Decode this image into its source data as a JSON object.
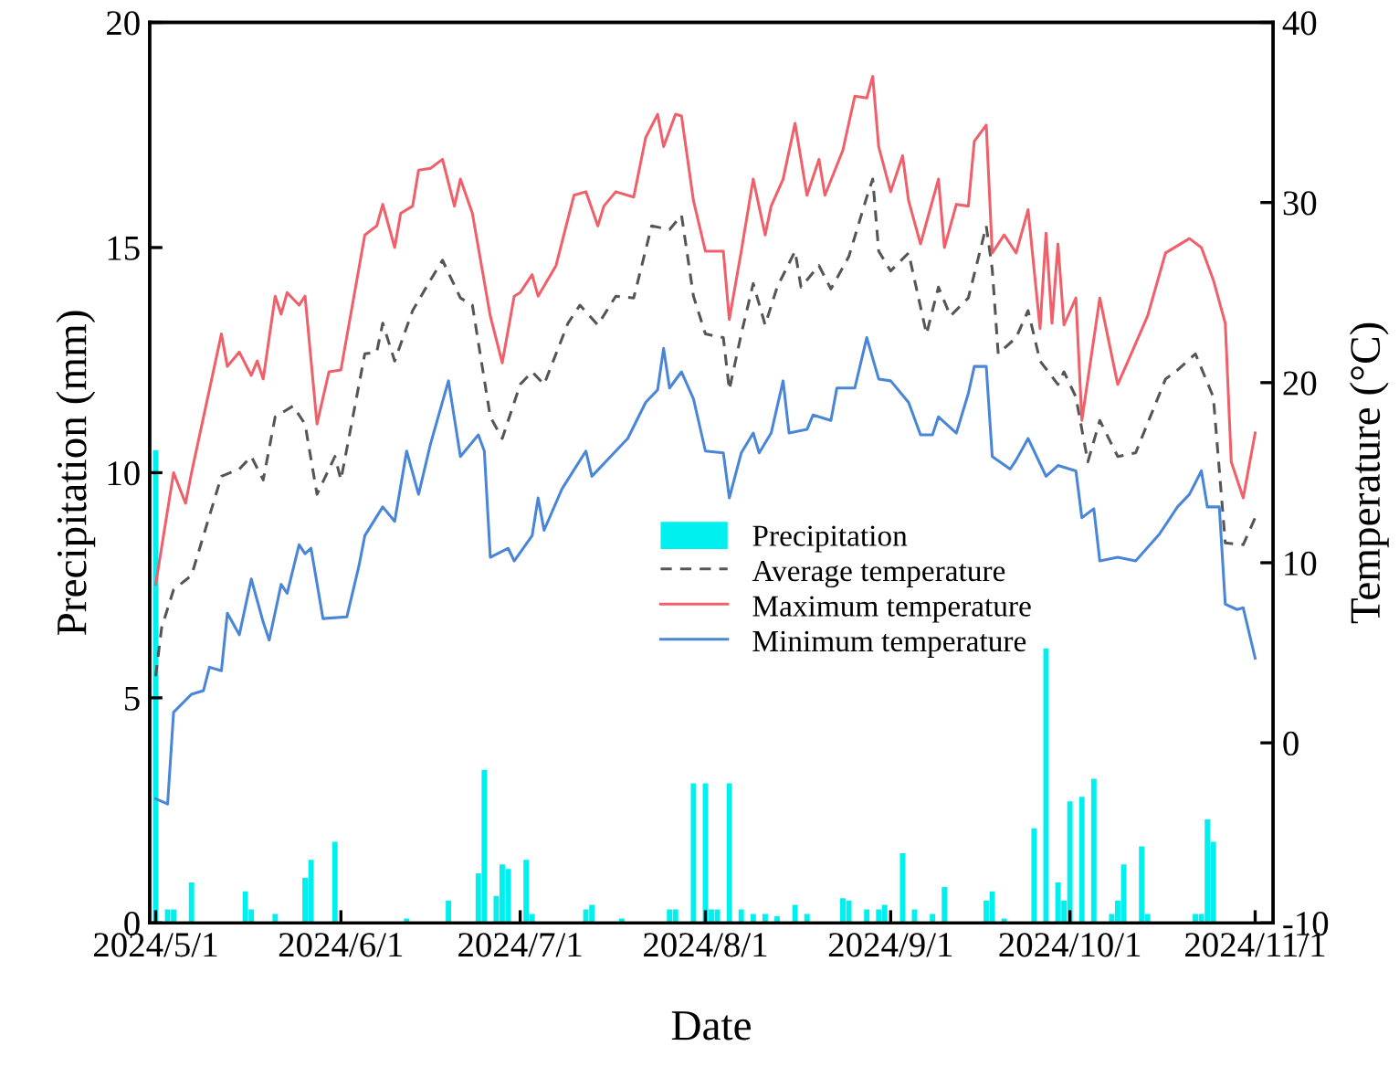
{
  "chart_data": {
    "type": "line",
    "xlabel": "Date",
    "ylabel": "Precipitation (mm)",
    "y2label": "Temperature (°C)",
    "xlim": [
      "2024-04-30",
      "2024-11-04"
    ],
    "xticks": [
      {
        "value": "2024-05-01",
        "label": "2024/5/1"
      },
      {
        "value": "2024-06-01",
        "label": "2024/6/1"
      },
      {
        "value": "2024-07-01",
        "label": "2024/7/1"
      },
      {
        "value": "2024-08-01",
        "label": "2024/8/1"
      },
      {
        "value": "2024-09-01",
        "label": "2024/9/1"
      },
      {
        "value": "2024-10-01",
        "label": "2024/10/1"
      },
      {
        "value": "2024-11-01",
        "label": "2024/11/1"
      }
    ],
    "ylim": [
      0,
      20
    ],
    "yticks": [
      0,
      5,
      10,
      15,
      20
    ],
    "y2lim": [
      -10,
      40
    ],
    "y2ticks": [
      -10,
      0,
      10,
      20,
      30,
      40
    ],
    "grid": false,
    "legend": "center",
    "marker": "none",
    "series": [
      {
        "name": "Precipitation",
        "type": "bar",
        "color": "#00f0f0",
        "x": [
          "2024-05-01",
          "2024-05-03",
          "2024-05-04",
          "2024-05-07",
          "2024-05-16",
          "2024-05-17",
          "2024-05-21",
          "2024-05-26",
          "2024-05-27",
          "2024-05-31",
          "2024-06-12",
          "2024-06-19",
          "2024-06-24",
          "2024-06-25",
          "2024-06-27",
          "2024-06-28",
          "2024-06-29",
          "2024-07-02",
          "2024-07-03",
          "2024-07-12",
          "2024-07-13",
          "2024-07-18",
          "2024-07-26",
          "2024-07-27",
          "2024-07-30",
          "2024-08-01",
          "2024-08-02",
          "2024-08-03",
          "2024-08-05",
          "2024-08-07",
          "2024-08-09",
          "2024-08-11",
          "2024-08-13",
          "2024-08-16",
          "2024-08-18",
          "2024-08-24",
          "2024-08-25",
          "2024-08-28",
          "2024-08-30",
          "2024-08-31",
          "2024-09-03",
          "2024-09-05",
          "2024-09-08",
          "2024-09-10",
          "2024-09-17",
          "2024-09-18",
          "2024-09-20",
          "2024-09-25",
          "2024-09-27",
          "2024-09-29",
          "2024-09-30",
          "2024-10-01",
          "2024-10-03",
          "2024-10-05",
          "2024-10-08",
          "2024-10-09",
          "2024-10-10",
          "2024-10-13",
          "2024-10-14",
          "2024-10-22",
          "2024-10-23",
          "2024-10-24",
          "2024-10-25"
        ],
        "values": [
          10.5,
          0.3,
          0.3,
          0.9,
          0.7,
          0.3,
          0.2,
          1.0,
          1.4,
          1.8,
          0.1,
          0.5,
          1.1,
          3.4,
          0.6,
          1.3,
          1.2,
          1.4,
          0.2,
          0.3,
          0.4,
          0.1,
          0.3,
          0.3,
          3.1,
          3.1,
          0.3,
          0.3,
          3.1,
          0.3,
          0.2,
          0.2,
          0.15,
          0.4,
          0.2,
          0.55,
          0.5,
          0.3,
          0.3,
          0.4,
          1.55,
          0.3,
          0.2,
          0.8,
          0.5,
          0.7,
          0.1,
          2.1,
          6.1,
          0.9,
          0.5,
          2.7,
          2.8,
          3.2,
          0.2,
          0.5,
          1.3,
          1.7,
          0.2,
          0.2,
          0.2,
          2.3,
          1.8
        ]
      },
      {
        "name": "Average temperature",
        "axis": "y2",
        "color": "#555555",
        "line_style": "dashed",
        "x": [
          "2024-05-01",
          "2024-05-02",
          "2024-05-04",
          "2024-05-07",
          "2024-05-12",
          "2024-05-15",
          "2024-05-17",
          "2024-05-19",
          "2024-05-21",
          "2024-05-24",
          "2024-05-26",
          "2024-05-28",
          "2024-05-31",
          "2024-06-01",
          "2024-06-05",
          "2024-06-07",
          "2024-06-08",
          "2024-06-10",
          "2024-06-13",
          "2024-06-16",
          "2024-06-18",
          "2024-06-21",
          "2024-06-23",
          "2024-06-26",
          "2024-06-28",
          "2024-07-01",
          "2024-07-03",
          "2024-07-05",
          "2024-07-09",
          "2024-07-11",
          "2024-07-14",
          "2024-07-17",
          "2024-07-20",
          "2024-07-23",
          "2024-07-26",
          "2024-07-28",
          "2024-07-30",
          "2024-08-01",
          "2024-08-04",
          "2024-08-05",
          "2024-08-07",
          "2024-08-09",
          "2024-08-11",
          "2024-08-13",
          "2024-08-16",
          "2024-08-17",
          "2024-08-20",
          "2024-08-22",
          "2024-08-25",
          "2024-08-28",
          "2024-08-29",
          "2024-08-30",
          "2024-09-01",
          "2024-09-04",
          "2024-09-07",
          "2024-09-09",
          "2024-09-11",
          "2024-09-14",
          "2024-09-17",
          "2024-09-18",
          "2024-09-19",
          "2024-09-22",
          "2024-09-24",
          "2024-09-26",
          "2024-09-29",
          "2024-09-30",
          "2024-10-02",
          "2024-10-04",
          "2024-10-06",
          "2024-10-09",
          "2024-10-12",
          "2024-10-17",
          "2024-10-19",
          "2024-10-22",
          "2024-10-25",
          "2024-10-27",
          "2024-10-30",
          "2024-11-01"
        ],
        "values": [
          3.7,
          6.4,
          8.5,
          9.3,
          14.8,
          15.2,
          15.9,
          14.6,
          18.1,
          18.7,
          17.7,
          13.8,
          15.9,
          14.6,
          21.6,
          21.7,
          23.3,
          21.2,
          24.0,
          25.7,
          26.8,
          24.7,
          24.3,
          18.1,
          16.9,
          19.9,
          20.6,
          19.9,
          23.3,
          24.3,
          23.2,
          24.8,
          24.7,
          28.7,
          28.5,
          29.3,
          24.8,
          22.7,
          22.5,
          19.6,
          22.7,
          25.5,
          23.2,
          25.3,
          27.3,
          25.3,
          26.5,
          25.2,
          27.0,
          30.3,
          31.3,
          27.3,
          26.2,
          27.2,
          22.7,
          25.3,
          23.7,
          24.7,
          28.7,
          26.3,
          21.6,
          22.5,
          24.0,
          21.2,
          19.9,
          20.6,
          19.2,
          15.6,
          17.9,
          15.9,
          16.1,
          20.2,
          20.7,
          21.6,
          19.2,
          11.1,
          11.0,
          12.5
        ]
      },
      {
        "name": "Maximum temperature",
        "axis": "y2",
        "color": "#f0606a",
        "line_style": "solid",
        "x": [
          "2024-05-01",
          "2024-05-04",
          "2024-05-06",
          "2024-05-07",
          "2024-05-12",
          "2024-05-13",
          "2024-05-15",
          "2024-05-17",
          "2024-05-18",
          "2024-05-19",
          "2024-05-21",
          "2024-05-22",
          "2024-05-23",
          "2024-05-25",
          "2024-05-26",
          "2024-05-28",
          "2024-05-30",
          "2024-06-01",
          "2024-06-05",
          "2024-06-07",
          "2024-06-08",
          "2024-06-10",
          "2024-06-11",
          "2024-06-13",
          "2024-06-14",
          "2024-06-16",
          "2024-06-18",
          "2024-06-20",
          "2024-06-21",
          "2024-06-23",
          "2024-06-26",
          "2024-06-28",
          "2024-06-30",
          "2024-07-01",
          "2024-07-03",
          "2024-07-04",
          "2024-07-07",
          "2024-07-10",
          "2024-07-12",
          "2024-07-14",
          "2024-07-15",
          "2024-07-17",
          "2024-07-20",
          "2024-07-22",
          "2024-07-24",
          "2024-07-25",
          "2024-07-27",
          "2024-07-28",
          "2024-07-30",
          "2024-08-01",
          "2024-08-04",
          "2024-08-05",
          "2024-08-07",
          "2024-08-09",
          "2024-08-11",
          "2024-08-12",
          "2024-08-14",
          "2024-08-16",
          "2024-08-18",
          "2024-08-20",
          "2024-08-21",
          "2024-08-24",
          "2024-08-26",
          "2024-08-28",
          "2024-08-29",
          "2024-08-30",
          "2024-09-01",
          "2024-09-03",
          "2024-09-04",
          "2024-09-06",
          "2024-09-09",
          "2024-09-10",
          "2024-09-12",
          "2024-09-14",
          "2024-09-15",
          "2024-09-17",
          "2024-09-18",
          "2024-09-20",
          "2024-09-22",
          "2024-09-24",
          "2024-09-26",
          "2024-09-27",
          "2024-09-28",
          "2024-09-29",
          "2024-09-30",
          "2024-10-02",
          "2024-10-03",
          "2024-10-06",
          "2024-10-09",
          "2024-10-11",
          "2024-10-14",
          "2024-10-17",
          "2024-10-21",
          "2024-10-23",
          "2024-10-25",
          "2024-10-27",
          "2024-10-28",
          "2024-10-30",
          "2024-11-01"
        ],
        "values": [
          8.8,
          15.0,
          13.3,
          15.0,
          22.7,
          20.9,
          21.7,
          20.4,
          21.2,
          20.2,
          24.8,
          23.8,
          25.0,
          24.3,
          24.8,
          17.7,
          20.6,
          20.7,
          28.2,
          28.7,
          29.9,
          27.5,
          29.4,
          29.8,
          31.8,
          31.9,
          32.4,
          29.8,
          31.3,
          29.4,
          23.7,
          21.1,
          24.8,
          25.0,
          26.0,
          24.8,
          26.5,
          30.4,
          30.6,
          28.7,
          29.8,
          30.6,
          30.3,
          33.6,
          34.9,
          33.1,
          34.9,
          34.8,
          30.1,
          27.3,
          27.3,
          23.5,
          27.3,
          31.3,
          28.2,
          29.8,
          31.3,
          34.4,
          30.4,
          32.4,
          30.4,
          32.9,
          35.9,
          35.8,
          37.0,
          33.1,
          30.6,
          32.6,
          30.1,
          27.7,
          31.3,
          27.5,
          29.9,
          29.8,
          33.4,
          34.3,
          27.2,
          28.2,
          27.2,
          29.6,
          23.0,
          28.3,
          23.3,
          27.7,
          23.2,
          24.7,
          17.9,
          24.7,
          19.9,
          21.4,
          23.7,
          27.2,
          28.0,
          27.5,
          25.7,
          23.3,
          15.6,
          13.6,
          17.2
        ]
      },
      {
        "name": "Minimum temperature",
        "axis": "y2",
        "color": "#4a86d8",
        "line_style": "solid",
        "x": [
          "2024-05-01",
          "2024-05-03",
          "2024-05-04",
          "2024-05-07",
          "2024-05-09",
          "2024-05-10",
          "2024-05-12",
          "2024-05-13",
          "2024-05-15",
          "2024-05-17",
          "2024-05-19",
          "2024-05-20",
          "2024-05-22",
          "2024-05-23",
          "2024-05-25",
          "2024-05-26",
          "2024-05-27",
          "2024-05-29",
          "2024-06-02",
          "2024-06-04",
          "2024-06-05",
          "2024-06-08",
          "2024-06-10",
          "2024-06-12",
          "2024-06-14",
          "2024-06-16",
          "2024-06-19",
          "2024-06-21",
          "2024-06-24",
          "2024-06-25",
          "2024-06-26",
          "2024-06-29",
          "2024-06-30",
          "2024-07-03",
          "2024-07-04",
          "2024-07-05",
          "2024-07-08",
          "2024-07-12",
          "2024-07-13",
          "2024-07-17",
          "2024-07-19",
          "2024-07-22",
          "2024-07-24",
          "2024-07-25",
          "2024-07-26",
          "2024-07-28",
          "2024-07-30",
          "2024-08-01",
          "2024-08-04",
          "2024-08-05",
          "2024-08-07",
          "2024-08-09",
          "2024-08-10",
          "2024-08-12",
          "2024-08-14",
          "2024-08-15",
          "2024-08-18",
          "2024-08-19",
          "2024-08-22",
          "2024-08-23",
          "2024-08-26",
          "2024-08-28",
          "2024-08-30",
          "2024-09-01",
          "2024-09-04",
          "2024-09-06",
          "2024-09-08",
          "2024-09-09",
          "2024-09-12",
          "2024-09-14",
          "2024-09-15",
          "2024-09-17",
          "2024-09-18",
          "2024-09-21",
          "2024-09-22",
          "2024-09-24",
          "2024-09-27",
          "2024-09-29",
          "2024-10-02",
          "2024-10-03",
          "2024-10-05",
          "2024-10-06",
          "2024-10-09",
          "2024-10-12",
          "2024-10-16",
          "2024-10-19",
          "2024-10-21",
          "2024-10-23",
          "2024-10-24",
          "2024-10-26",
          "2024-10-27",
          "2024-10-29",
          "2024-10-30",
          "2024-11-01"
        ],
        "values": [
          -3.1,
          -3.4,
          1.7,
          2.7,
          2.9,
          4.2,
          4.0,
          7.2,
          6.0,
          9.1,
          6.7,
          5.7,
          8.8,
          8.3,
          11.0,
          10.5,
          10.8,
          6.9,
          7.0,
          9.8,
          11.5,
          13.1,
          12.3,
          16.2,
          13.8,
          16.6,
          20.1,
          15.9,
          17.1,
          16.2,
          10.3,
          10.8,
          10.1,
          11.5,
          13.6,
          11.8,
          14.1,
          16.2,
          14.8,
          16.2,
          16.9,
          18.9,
          19.6,
          21.9,
          19.7,
          20.6,
          19.1,
          16.2,
          16.1,
          13.6,
          16.1,
          17.2,
          16.1,
          17.2,
          20.1,
          17.2,
          17.4,
          18.2,
          17.9,
          19.7,
          19.7,
          22.5,
          20.2,
          20.1,
          18.9,
          17.1,
          17.1,
          18.1,
          17.2,
          19.4,
          20.9,
          20.9,
          15.9,
          15.2,
          15.7,
          16.9,
          14.8,
          15.4,
          15.1,
          12.5,
          13.0,
          10.1,
          10.3,
          10.1,
          11.6,
          13.1,
          13.8,
          15.1,
          13.1,
          13.1,
          7.7,
          7.4,
          7.5,
          4.7
        ]
      }
    ]
  }
}
